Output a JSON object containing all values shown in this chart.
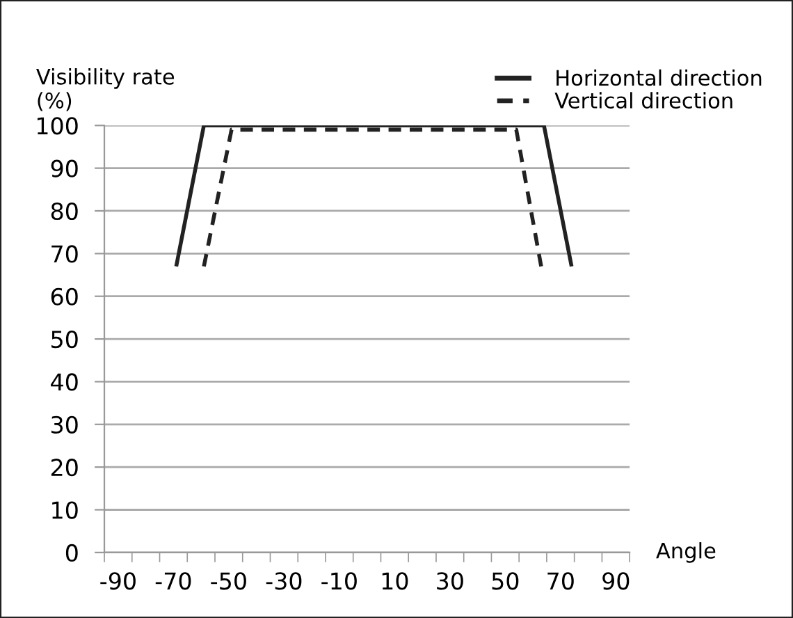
{
  "chart_data": {
    "type": "line",
    "ylabel": "Visibility rate\n(%)",
    "xlabel": "Angle",
    "series": [
      {
        "name": "Horizontal direction",
        "color": "#222222",
        "line_style": "solid",
        "x": [
          -69,
          -59,
          64,
          74
        ],
        "values": [
          67,
          100,
          100,
          67
        ]
      },
      {
        "name": "Vertical direction",
        "color": "#222222",
        "line_style": "dashed",
        "x": [
          -59,
          -49,
          54,
          63
        ],
        "values": [
          67,
          99,
          99,
          67
        ]
      }
    ],
    "xlim": [
      -95,
      95
    ],
    "xticks": [
      {
        "value": -95,
        "label": null
      },
      {
        "value": -85,
        "label": null
      },
      {
        "value": -75,
        "label": null
      },
      {
        "value": -65,
        "label": null
      },
      {
        "value": -55,
        "label": null
      },
      {
        "value": -45,
        "label": null
      },
      {
        "value": -35,
        "label": null
      },
      {
        "value": -25,
        "label": null
      },
      {
        "value": -15,
        "label": null
      },
      {
        "value": -5,
        "label": null
      },
      {
        "value": 5,
        "label": null
      },
      {
        "value": 15,
        "label": null
      },
      {
        "value": 25,
        "label": null
      },
      {
        "value": 35,
        "label": null
      },
      {
        "value": 45,
        "label": null
      },
      {
        "value": 55,
        "label": null
      },
      {
        "value": 65,
        "label": null
      },
      {
        "value": 75,
        "label": null
      },
      {
        "value": 85,
        "label": null
      },
      {
        "value": 95,
        "label": null
      },
      -90,
      -70,
      -50,
      -30,
      -10,
      10,
      30,
      50,
      70,
      90
    ],
    "ylim": [
      0,
      100
    ],
    "yticks": [
      0,
      10,
      20,
      30,
      40,
      50,
      60,
      70,
      80,
      90,
      100
    ],
    "grid": "y",
    "legend": "top right",
    "marker": "none"
  }
}
